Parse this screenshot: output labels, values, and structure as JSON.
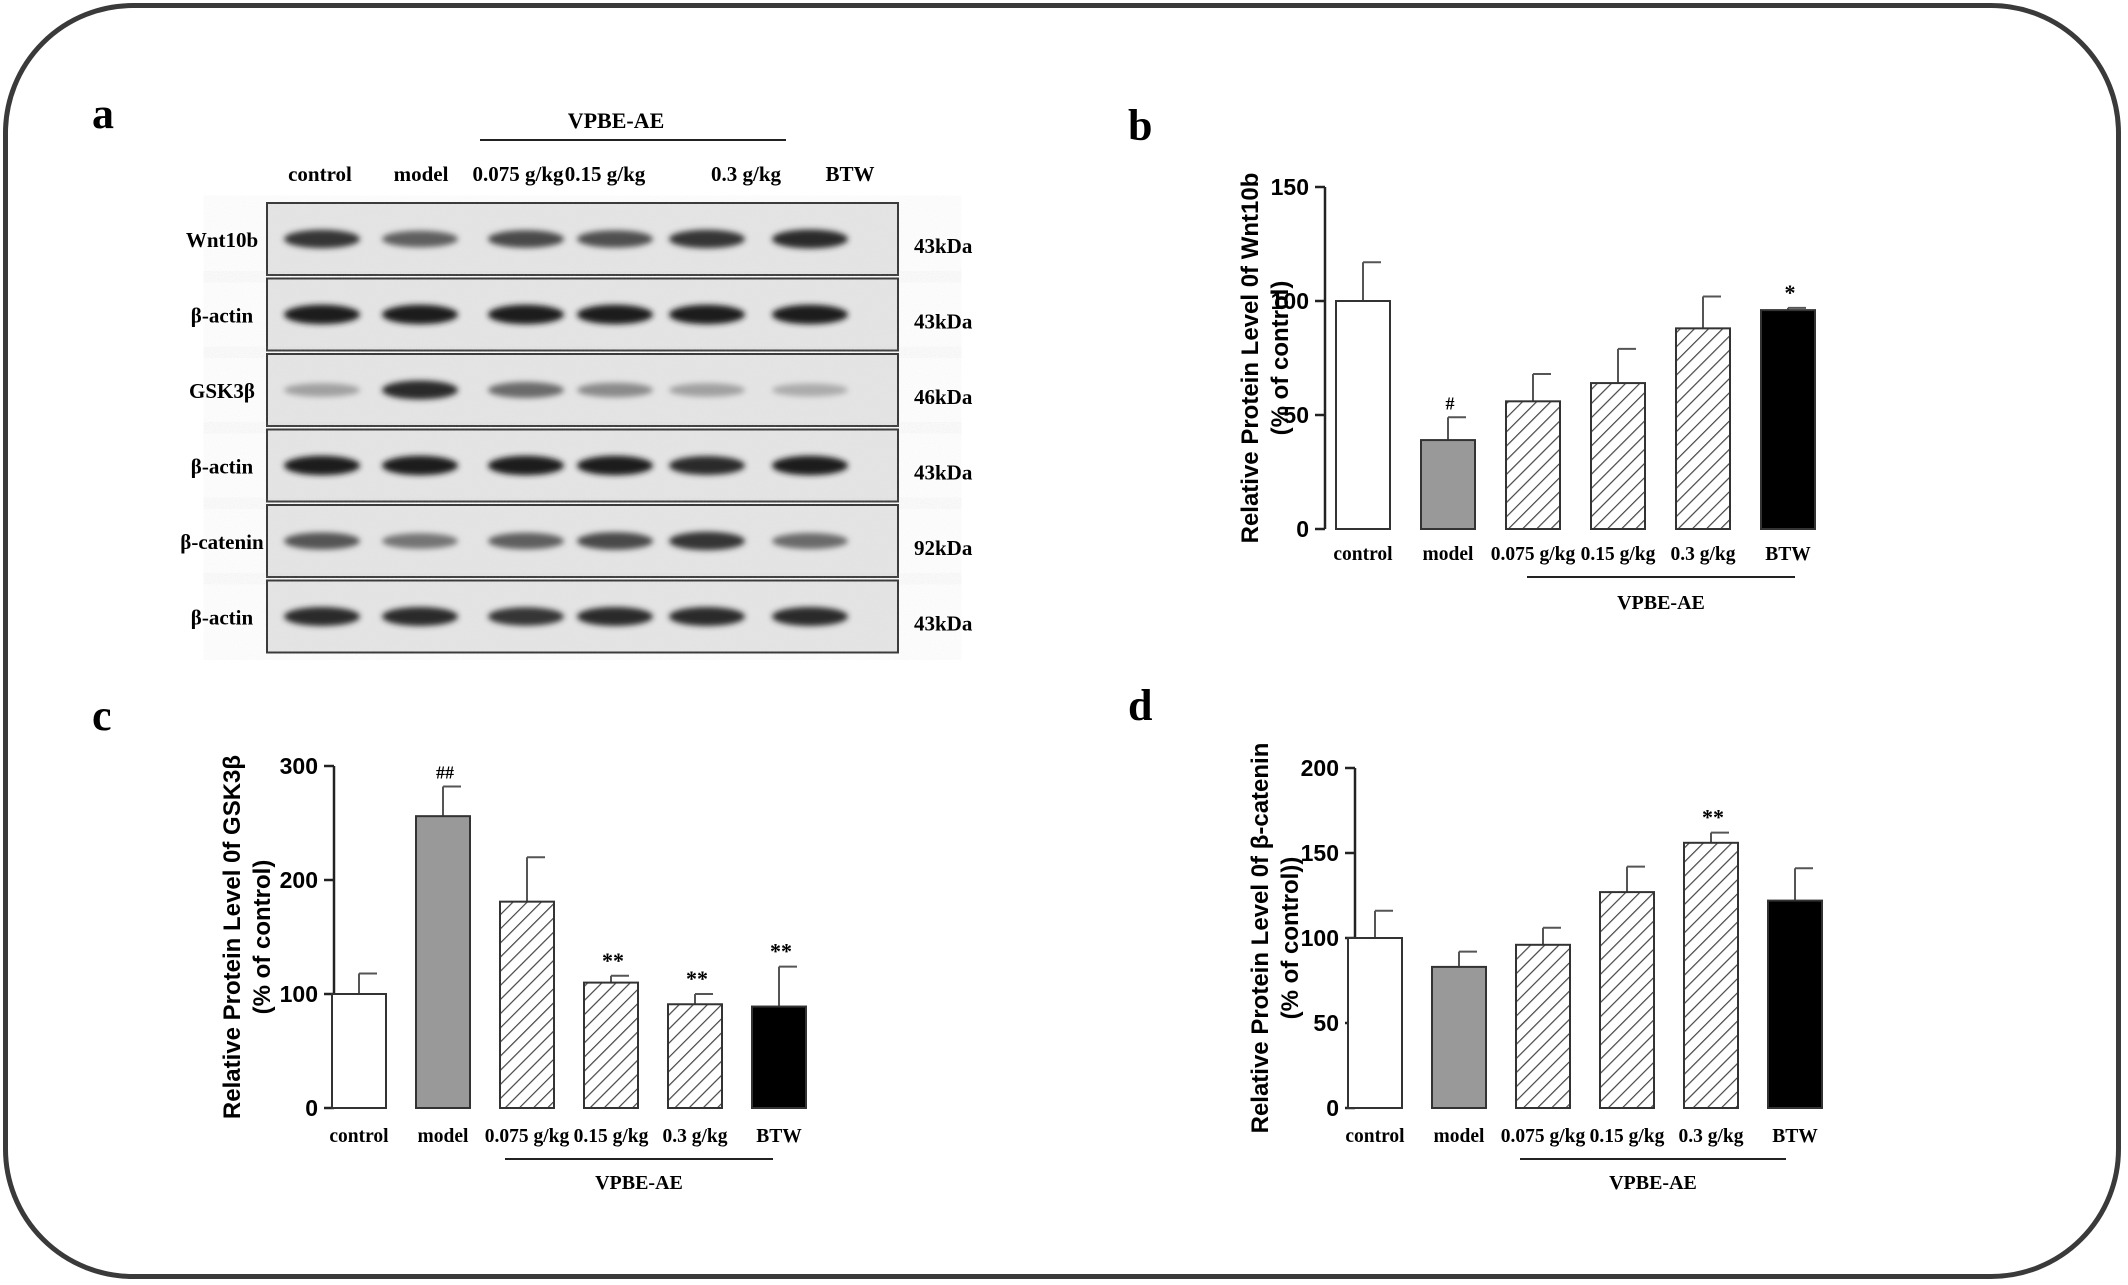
{
  "panel_letters": [
    "a",
    "b",
    "c",
    "d"
  ],
  "colors": {
    "control": "#ffffff",
    "model": "#999999",
    "btw": "#000000",
    "stroke": "#222222",
    "hatch": "#444444"
  },
  "blot": {
    "group_label": "VPBE-AE",
    "lanes": [
      "control",
      "model",
      "0.075 g/kg",
      "0.15 g/kg",
      "0.3 g/kg",
      "BTW"
    ],
    "rows": [
      {
        "label": "Wnt10b",
        "kda": "43kDa",
        "intensity": [
          0.85,
          0.65,
          0.75,
          0.72,
          0.85,
          0.9
        ]
      },
      {
        "label": "β-actin",
        "kda": "43kDa",
        "intensity": [
          0.95,
          0.95,
          0.95,
          0.95,
          0.95,
          0.95
        ]
      },
      {
        "label": "GSK3β",
        "kda": "46kDa",
        "intensity": [
          0.35,
          0.9,
          0.6,
          0.45,
          0.35,
          0.3
        ]
      },
      {
        "label": "β-actin",
        "kda": "43kDa",
        "intensity": [
          0.95,
          0.95,
          0.95,
          0.95,
          0.9,
          0.95
        ]
      },
      {
        "label": "β-catenin",
        "kda": "92kDa",
        "intensity": [
          0.7,
          0.55,
          0.65,
          0.75,
          0.85,
          0.6
        ]
      },
      {
        "label": "β-actin",
        "kda": "43kDa",
        "intensity": [
          0.9,
          0.9,
          0.85,
          0.9,
          0.9,
          0.9
        ]
      }
    ]
  },
  "chart_data": [
    {
      "panel": "b",
      "type": "bar",
      "categories": [
        "control",
        "model",
        "0.075 g/kg",
        "0.15 g/kg",
        "0.3 g/kg",
        "BTW"
      ],
      "values": [
        100,
        39,
        56,
        64,
        88,
        96
      ],
      "errors": [
        17,
        10,
        12,
        15,
        14,
        1
      ],
      "annotations": [
        "",
        "#",
        "",
        "",
        "",
        "*"
      ],
      "ylabel": "Relative Protein Level 0f Wnt10b\n(% of control)",
      "ylim": [
        0,
        150
      ],
      "yticks": [
        0,
        50,
        100,
        150
      ],
      "group_label": "VPBE-AE",
      "fills": [
        "white",
        "gray",
        "hatch",
        "hatch",
        "hatch",
        "black"
      ]
    },
    {
      "panel": "c",
      "type": "bar",
      "categories": [
        "control",
        "model",
        "0.075 g/kg",
        "0.15 g/kg",
        "0.3 g/kg",
        "BTW"
      ],
      "values": [
        100,
        256,
        181,
        110,
        91,
        89
      ],
      "errors": [
        18,
        26,
        39,
        6,
        9,
        35
      ],
      "annotations": [
        "",
        "##",
        "",
        "**",
        "**",
        "**"
      ],
      "ylabel": "Relative Protein Level 0f GSK3β\n(% of control)",
      "ylim": [
        0,
        300
      ],
      "yticks": [
        0,
        100,
        200,
        300
      ],
      "group_label": "VPBE-AE",
      "fills": [
        "white",
        "gray",
        "hatch",
        "hatch",
        "hatch",
        "black"
      ]
    },
    {
      "panel": "d",
      "type": "bar",
      "categories": [
        "control",
        "model",
        "0.075 g/kg",
        "0.15 g/kg",
        "0.3 g/kg",
        "BTW"
      ],
      "values": [
        100,
        83,
        96,
        127,
        156,
        122
      ],
      "errors": [
        16,
        9,
        10,
        15,
        6,
        19
      ],
      "annotations": [
        "",
        "",
        "",
        "",
        "**",
        ""
      ],
      "ylabel": "Relative Protein Level 0f β-catenin\n(% of control))",
      "ylim": [
        0,
        200
      ],
      "yticks": [
        0,
        50,
        100,
        150,
        200
      ],
      "group_label": "VPBE-AE",
      "fills": [
        "white",
        "gray",
        "hatch",
        "hatch",
        "hatch",
        "black"
      ]
    }
  ]
}
